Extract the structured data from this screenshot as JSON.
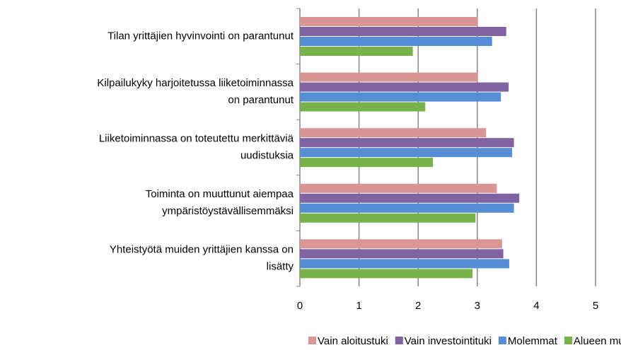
{
  "chart_data": {
    "type": "barh",
    "categories": [
      "Tilan yrittäjien hyvinvointi on parantunut",
      "Kilpailukyky harjoitetussa liiketoiminnassa\non parantunut",
      "Liiketoiminnassa on toteutettu  merkittäviä\nuudistuksia",
      "Toiminta on muuttunut aiempaa\nympäristöystävällisemmäksi",
      "Yhteistyötä muiden yrittäjien kanssa on\nlisätty"
    ],
    "series": [
      {
        "name": "Vain aloitustuki",
        "color": "#d99694",
        "values": [
          3.0,
          3.0,
          3.15,
          3.33,
          3.42
        ]
      },
      {
        "name": "Vain investointituki",
        "color": "#8064a2",
        "values": [
          3.49,
          3.53,
          3.62,
          3.71,
          3.44
        ]
      },
      {
        "name": "Molemmat",
        "color": "#558ed5",
        "values": [
          3.25,
          3.4,
          3.59,
          3.62,
          3.54
        ]
      },
      {
        "name": "Alueen muut maatalousyrittäjät",
        "color": "#77b34a",
        "values": [
          1.91,
          2.12,
          2.25,
          2.97,
          2.92
        ]
      }
    ],
    "xlim": [
      0,
      5
    ],
    "xticks": [
      0,
      1,
      2,
      3,
      4,
      5
    ],
    "grid": true,
    "legend": "bottom"
  }
}
